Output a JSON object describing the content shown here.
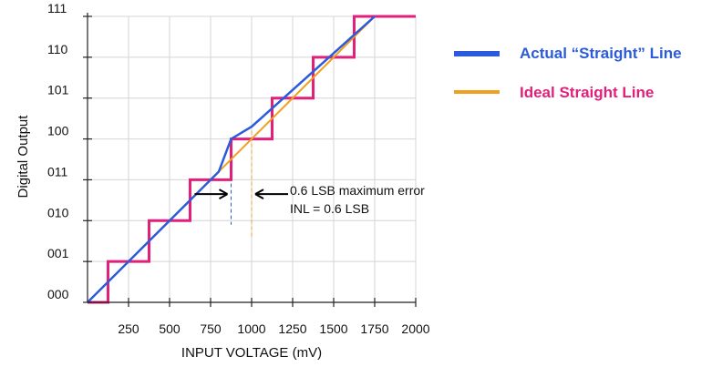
{
  "chart_data": {
    "type": "line",
    "xlabel": "INPUT VOLTAGE (mV)",
    "ylabel": "Digital Output",
    "x_ticks": [
      250,
      500,
      750,
      1000,
      1250,
      1500,
      1750,
      2000
    ],
    "y_ticks": [
      "000",
      "001",
      "010",
      "011",
      "100",
      "101",
      "110",
      "111"
    ],
    "xlim": [
      0,
      2000
    ],
    "ylim": [
      0,
      7
    ],
    "grid": true,
    "legend_position": "right",
    "series": [
      {
        "name": "Actual “Straight” Line",
        "color": "#2b5bdc",
        "points": [
          [
            0,
            0
          ],
          [
            800,
            3.2
          ],
          [
            875,
            4.0
          ],
          [
            1000,
            4.3
          ],
          [
            1750,
            7.0
          ]
        ]
      },
      {
        "name": "Ideal Straight Line",
        "color": "#f0a020",
        "points": [
          [
            0,
            0
          ],
          [
            1750,
            7.0
          ]
        ]
      },
      {
        "name": "",
        "color": "#e0207a",
        "step_edges": [
          0,
          125,
          375,
          625,
          875,
          1125,
          1375,
          1625,
          2000
        ],
        "step_levels": [
          0,
          1,
          2,
          3,
          4,
          5,
          6,
          7
        ]
      }
    ],
    "inl_markers": {
      "actual_x": 875,
      "ideal_x": 1000,
      "y_range": [
        1.9,
        4.0
      ]
    },
    "annotations": [
      "0.6 LSB maximum error",
      "INL = 0.6 LSB"
    ]
  }
}
